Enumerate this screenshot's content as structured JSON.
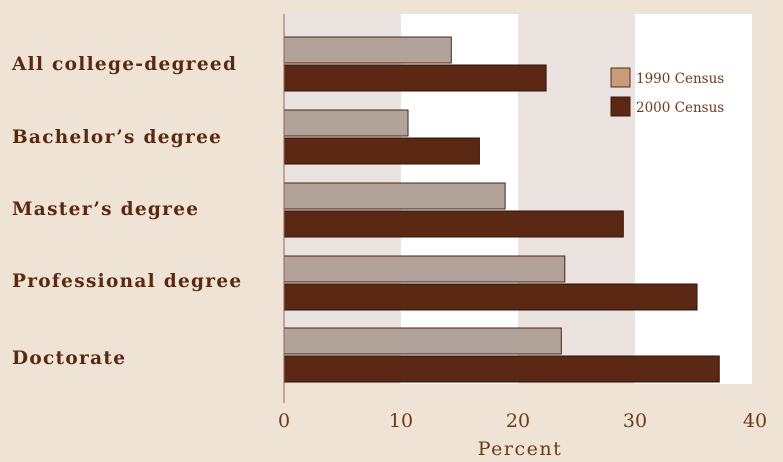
{
  "chart_data": {
    "type": "bar",
    "orientation": "horizontal",
    "categories": [
      "All college-degreed",
      "Bachelor’s degree",
      "Master’s degree",
      "Professional degree",
      "Doctorate"
    ],
    "series": [
      {
        "name": "1990 Census",
        "values": [
          14.3,
          10.6,
          18.9,
          24.0,
          23.7
        ],
        "color": "#b1a29a"
      },
      {
        "name": "2000 Census",
        "values": [
          22.4,
          16.7,
          29.0,
          35.3,
          37.2
        ],
        "color": "#5b2814"
      }
    ],
    "xlabel": "Percent",
    "xlim": [
      0,
      40
    ],
    "xticks": [
      0,
      10,
      20,
      30,
      40
    ],
    "legend_position": "top-right",
    "band_colors": [
      "#ebe3df",
      "#ffffff"
    ],
    "background": "#efe3d5",
    "label_color": "#5a2a10",
    "tick_color": "#6b3a1c"
  }
}
